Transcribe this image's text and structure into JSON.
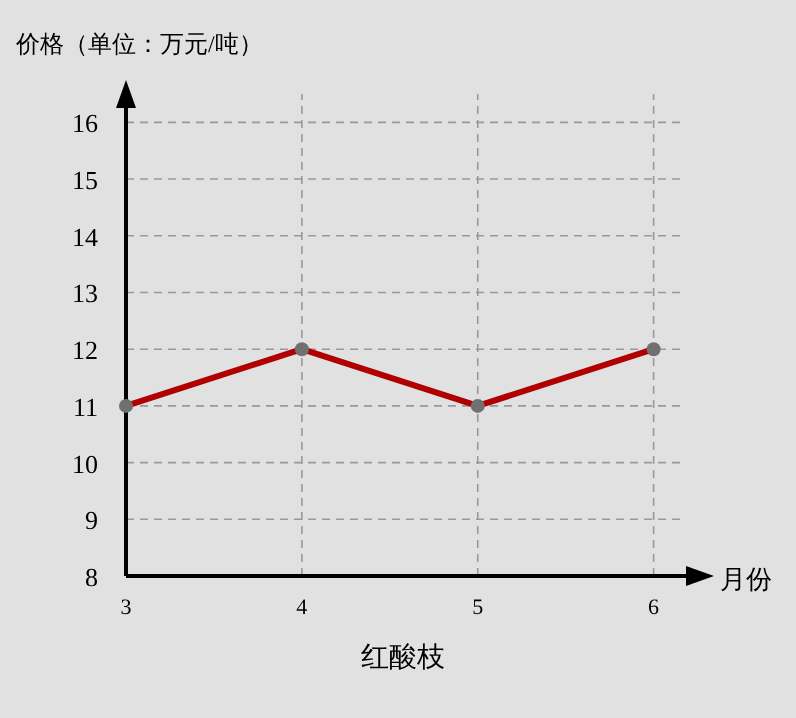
{
  "chart_data": {
    "type": "line",
    "title": "红酸枝",
    "xlabel": "月份",
    "ylabel": "价格（单位：万元/吨）",
    "x": [
      3,
      4,
      5,
      6
    ],
    "xlim": [
      3,
      6.15
    ],
    "xticks": [
      3,
      4,
      5,
      6
    ],
    "ylim": [
      8,
      16.5
    ],
    "yticks": [
      8,
      9,
      10,
      11,
      12,
      13,
      14,
      15,
      16
    ],
    "grid": true,
    "marker": "circle",
    "line_style": "solid",
    "series": [
      {
        "color": "#b00000",
        "values": [
          11,
          12,
          11,
          12
        ]
      }
    ]
  }
}
